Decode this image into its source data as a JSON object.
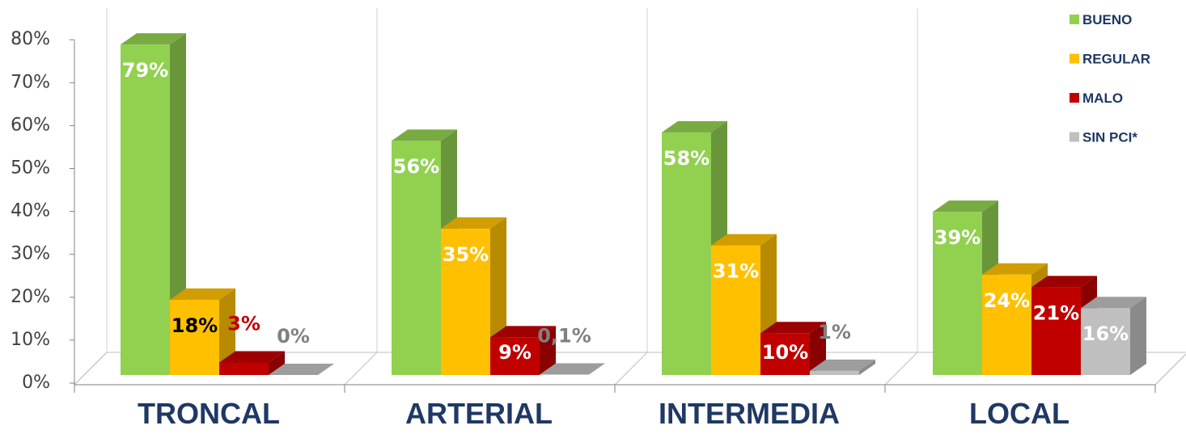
{
  "chart_data": {
    "type": "bar",
    "title": "",
    "xlabel": "",
    "ylabel": "",
    "ylim": [
      0,
      80
    ],
    "y_ticks": [
      "0%",
      "10%",
      "20%",
      "30%",
      "40%",
      "50%",
      "60%",
      "70%",
      "80%"
    ],
    "categories": [
      "TRONCAL",
      "ARTERIAL",
      "INTERMEDIA",
      "LOCAL"
    ],
    "series": [
      {
        "name": "BUENO",
        "color": "#92d050",
        "values": [
          79,
          56,
          58,
          39
        ],
        "labels": [
          "79%",
          "56%",
          "58%",
          "39%"
        ],
        "label_colors": [
          "#ffffff",
          "#ffffff",
          "#ffffff",
          "#ffffff"
        ]
      },
      {
        "name": "REGULAR",
        "color": "#ffc000",
        "values": [
          18,
          35,
          31,
          24
        ],
        "labels": [
          "18%",
          "35%",
          "31%",
          "24%"
        ],
        "label_colors": [
          "#000000",
          "#ffffff",
          "#ffffff",
          "#ffffff"
        ]
      },
      {
        "name": "MALO",
        "color": "#c00000",
        "values": [
          3,
          9,
          10,
          21
        ],
        "labels": [
          "3%",
          "9%",
          "10%",
          "21%"
        ],
        "label_colors": [
          "#c00000",
          "#ffffff",
          "#ffffff",
          "#ffffff"
        ]
      },
      {
        "name": "SIN PCI*",
        "color": "#bfbfbf",
        "values": [
          0,
          0.1,
          1,
          16
        ],
        "labels": [
          "0%",
          "0,1%",
          "1%",
          "16%"
        ],
        "label_colors": [
          "#808080",
          "#808080",
          "#808080",
          "#ffffff"
        ]
      }
    ],
    "legend_position": "top-right",
    "style": "3d-clustered-column",
    "grid": false
  }
}
